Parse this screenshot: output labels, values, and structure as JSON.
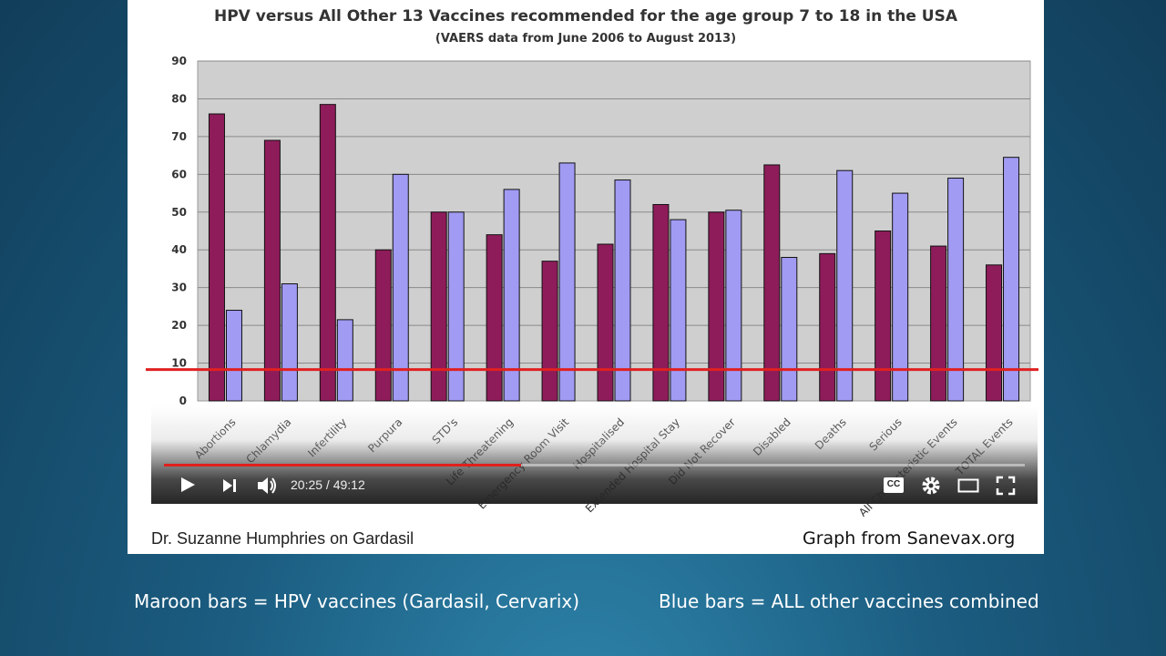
{
  "chart_data": {
    "type": "bar",
    "title": "HPV versus All Other 13 Vaccines recommended for the age group 7 to 18 in the USA",
    "subtitle": "(VAERS data from June 2006 to August 2013)",
    "categories": [
      "Abortions",
      "Chlamydia",
      "Infertility",
      "Purpura",
      "STD's",
      "Life Threatening",
      "Emergency Room Visit",
      "Hospitalised",
      "Extended Hospital Stay",
      "Did Not Recover",
      "Disabled",
      "Deaths",
      "Serious",
      "All Characteristic Events",
      "TOTAL Events"
    ],
    "series": [
      {
        "name": "",
        "color": "#8e1c5a",
        "values": [
          76,
          69,
          78.5,
          40,
          50,
          44,
          37,
          41.5,
          52,
          50,
          62.5,
          39,
          45,
          41,
          36
        ]
      },
      {
        "name": "",
        "color": "#a19bf3",
        "values": [
          24,
          31,
          21.5,
          60,
          50,
          56,
          63,
          58.5,
          48,
          50.5,
          38,
          61,
          55,
          59,
          64.5
        ]
      }
    ],
    "ylim": [
      0,
      90
    ],
    "yticks": [
      0,
      10,
      20,
      30,
      40,
      50,
      60,
      70,
      80,
      90
    ],
    "reference_line": {
      "value": 8.3,
      "color": "#e02020"
    },
    "grid": true,
    "legend": "none",
    "plot_background": "#cfcfcf"
  },
  "video": {
    "current_time": "20:25",
    "separator": " / ",
    "duration": "49:12",
    "progress": 0.415,
    "icons": [
      "play-icon",
      "next-icon",
      "volume-icon",
      "captions-icon",
      "settings-icon",
      "theater-icon",
      "fullscreen-icon"
    ],
    "cc_label": "CC"
  },
  "footer": {
    "left": "Dr. Suzanne Humphries on Gardasil",
    "right": "Graph from Sanevax.org"
  },
  "captions": {
    "maroon": "Maroon bars = HPV vaccines (Gardasil, Cervarix)",
    "blue": "Blue bars = ALL other vaccines combined"
  }
}
